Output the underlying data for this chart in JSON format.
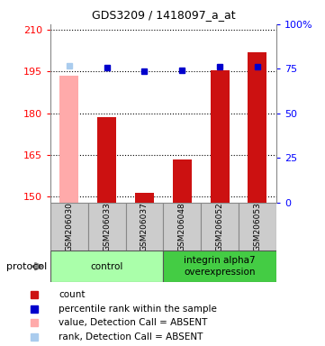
{
  "title": "GDS3209 / 1418097_a_at",
  "samples": [
    "GSM206030",
    "GSM206033",
    "GSM206037",
    "GSM206048",
    "GSM206052",
    "GSM206053"
  ],
  "bar_values": [
    193.5,
    178.5,
    151.5,
    163.5,
    195.5,
    202.0
  ],
  "bar_absent": [
    true,
    false,
    false,
    false,
    false,
    false
  ],
  "percentile_values": [
    197.0,
    196.5,
    195.2,
    195.5,
    196.8,
    196.8
  ],
  "percentile_absent": [
    true,
    false,
    false,
    false,
    false,
    false
  ],
  "ylim_left": [
    148,
    212
  ],
  "yticks_left": [
    150,
    165,
    180,
    195,
    210
  ],
  "ylim_right": [
    0,
    100
  ],
  "yticks_right": [
    0,
    25,
    50,
    75,
    100
  ],
  "bar_color_present": "#cc1111",
  "bar_color_absent": "#ffaaaa",
  "dot_color_present": "#0000cc",
  "dot_color_absent": "#aaccee",
  "group_control_color": "#aaffaa",
  "group_integrin_color": "#44cc44",
  "sample_box_color": "#cccccc",
  "legend_items": [
    {
      "color": "#cc1111",
      "label": "count",
      "marker": "s"
    },
    {
      "color": "#0000cc",
      "label": "percentile rank within the sample",
      "marker": "s"
    },
    {
      "color": "#ffaaaa",
      "label": "value, Detection Call = ABSENT",
      "marker": "s"
    },
    {
      "color": "#aaccee",
      "label": "rank, Detection Call = ABSENT",
      "marker": "s"
    }
  ]
}
